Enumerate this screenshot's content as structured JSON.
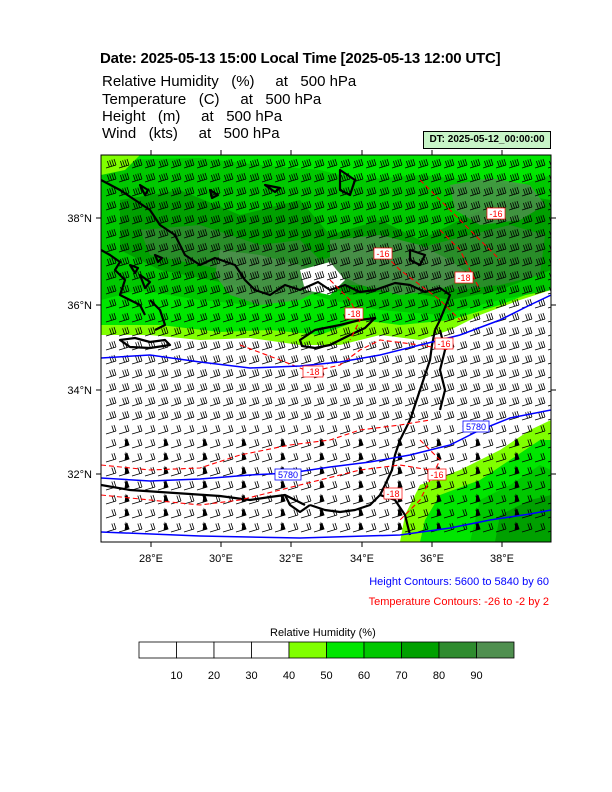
{
  "title": "Date: 2025-05-13  15:00 Local Time [2025-05-13  12:00 UTC]",
  "variables": [
    "Relative Humidity   (%)     at   500 hPa",
    "Temperature   (C)     at   500 hPa",
    "Height   (m)     at   500 hPa",
    "Wind   (kts)     at   500 hPa"
  ],
  "dt_badge": "DT: 2025-05-12_00:00:00",
  "lat_labels": [
    "38°N",
    "36°N",
    "34°N",
    "32°N"
  ],
  "lon_labels": [
    "28°E",
    "30°E",
    "32°E",
    "34°E",
    "36°E",
    "38°E"
  ],
  "height_contours_note": "Height Contours: 5600 to 5840 by 60",
  "temperature_contours_note": "Temperature Contours: -26 to -2 by 2",
  "height_contour_labels": [
    "5780",
    "5780"
  ],
  "temperature_contour_labels": [
    "-18",
    "-18",
    "-16",
    "-16",
    "-18",
    "-16",
    "-16",
    "-18"
  ],
  "colorbar": {
    "title": "Relative Humidity  (%)",
    "ticks": [
      "10",
      "20",
      "30",
      "40",
      "50",
      "60",
      "70",
      "80",
      "90"
    ],
    "colors": [
      "#ffffff",
      "#ffffff",
      "#ffffff",
      "#ffffff",
      "#80ff00",
      "#00e600",
      "#00c800",
      "#00a000",
      "#2e8b2e",
      "#4f8f4f"
    ]
  },
  "colors": {
    "height_contour": "#0000ff",
    "temperature_contour": "#ff0000",
    "coastline": "#000000"
  }
}
